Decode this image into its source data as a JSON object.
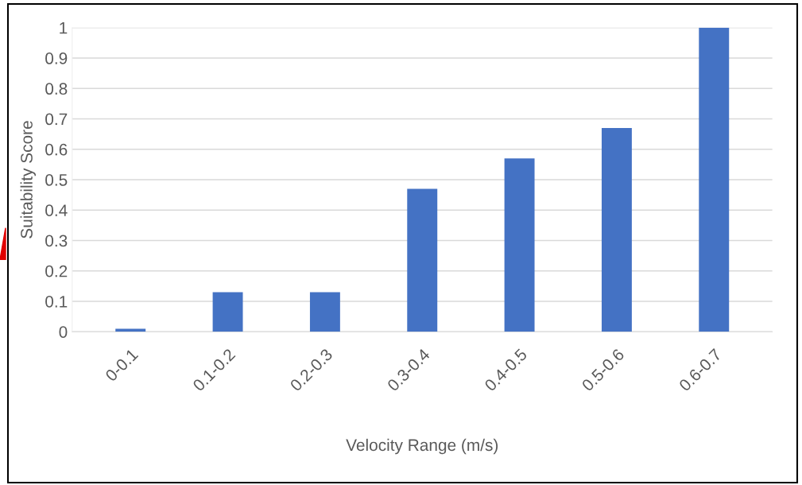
{
  "chart_data": {
    "type": "bar",
    "xlabel": "Velocity Range (m/s)",
    "ylabel": "Suitability Score",
    "categories": [
      "0-0.1",
      "0.1-0.2",
      "0.2-0.3",
      "0.3-0.4",
      "0.4-0.5",
      "0.5-0.6",
      "0.6-0.7"
    ],
    "values": [
      0.01,
      0.13,
      0.13,
      0.47,
      0.57,
      0.67,
      1.0
    ],
    "color": "#4472c4",
    "ylim": [
      0,
      1
    ],
    "yticks": [
      0,
      0.1,
      0.2,
      0.3,
      0.4,
      0.5,
      0.6,
      0.7,
      0.8,
      0.9,
      1
    ],
    "grid": "y"
  }
}
